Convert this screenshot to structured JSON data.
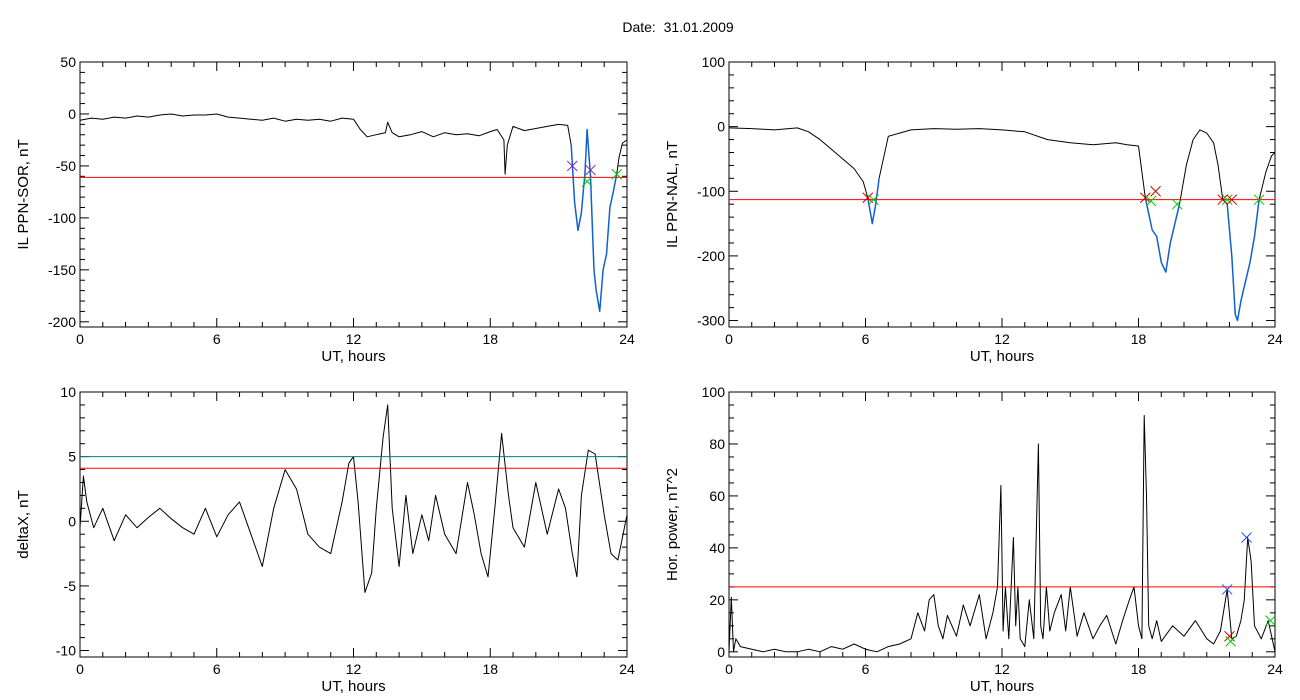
{
  "header": {
    "date_title": "Date:  31.01.2009"
  },
  "colors": {
    "trace": "#000000",
    "threshold": "#ff0000",
    "threshold2": "#008080",
    "highlight": "#1060d0",
    "marker_red": "#cc0000",
    "marker_green": "#00cc00",
    "marker_blue": "#2050ff",
    "marker_purple": "#8020a0"
  },
  "chart_data": [
    {
      "type": "line",
      "title": "",
      "xlabel": "UT, hours",
      "ylabel": "IL PPN-SOR, nT",
      "xlim": [
        0,
        24
      ],
      "ylim": [
        -205,
        50
      ],
      "xticks": [
        0,
        6,
        12,
        18,
        24
      ],
      "yticks": [
        50,
        0,
        -50,
        -100,
        -150,
        -200
      ],
      "grid": false,
      "thresholds": [
        {
          "y": -61,
          "color": "red"
        }
      ],
      "series": [
        {
          "color": "black",
          "x": [
            0,
            0.5,
            1,
            1.5,
            2,
            2.5,
            3,
            3.5,
            4,
            4.5,
            5,
            5.5,
            6,
            6.5,
            7,
            7.5,
            8,
            8.5,
            9,
            9.5,
            10,
            10.5,
            11,
            11.5,
            12,
            12.3,
            12.6,
            13,
            13.4,
            13.5,
            13.7,
            14,
            14.5,
            15,
            15.5,
            16,
            16.5,
            17,
            17.5,
            18,
            18.3,
            18.6,
            18.65,
            18.75,
            19,
            19.5,
            20,
            20.5,
            21,
            21.4,
            21.55
          ],
          "y": [
            -6,
            -4,
            -5,
            -3,
            -4,
            -2,
            -3,
            -1,
            0,
            -2,
            -1,
            -1,
            0,
            -3,
            -4,
            -5,
            -6,
            -4,
            -7,
            -5,
            -6,
            -5,
            -7,
            -4,
            -5,
            -15,
            -22,
            -20,
            -18,
            -8,
            -18,
            -22,
            -20,
            -17,
            -22,
            -18,
            -20,
            -19,
            -21,
            -17,
            -15,
            -25,
            -58,
            -30,
            -12,
            -16,
            -14,
            -12,
            -10,
            -11,
            -30
          ]
        },
        {
          "color": "blue",
          "x": [
            21.55,
            21.7,
            21.85,
            22.0,
            22.1,
            22.15,
            22.25,
            22.4,
            22.5,
            22.55,
            22.65,
            22.8,
            22.95,
            23.1,
            23.25,
            23.4,
            23.55
          ],
          "y": [
            -30,
            -85,
            -112,
            -95,
            -70,
            -60,
            -15,
            -60,
            -120,
            -150,
            -170,
            -190,
            -150,
            -135,
            -90,
            -75,
            -58
          ]
        },
        {
          "color": "black",
          "x": [
            23.55,
            23.65,
            23.8,
            24
          ],
          "y": [
            -58,
            -42,
            -28,
            -25
          ]
        }
      ],
      "markers": [
        {
          "x": 21.6,
          "y": -50,
          "color": "purple"
        },
        {
          "x": 22.4,
          "y": -54,
          "color": "purple"
        },
        {
          "x": 22.25,
          "y": -65,
          "color": "green"
        },
        {
          "x": 23.55,
          "y": -58,
          "color": "green"
        }
      ]
    },
    {
      "type": "line",
      "title": "",
      "xlabel": "UT, hours",
      "ylabel": "IL PPN-NAL, nT",
      "xlim": [
        0,
        24
      ],
      "ylim": [
        -310,
        100
      ],
      "xticks": [
        0,
        6,
        12,
        18,
        24
      ],
      "yticks": [
        100,
        0,
        -100,
        -200,
        -300
      ],
      "grid": false,
      "thresholds": [
        {
          "y": -113,
          "color": "red"
        }
      ],
      "series": [
        {
          "color": "black",
          "x": [
            0,
            1,
            2,
            3,
            3.5,
            4,
            4.5,
            5,
            5.5,
            5.9,
            6.1
          ],
          "y": [
            -2,
            -3,
            -5,
            -2,
            -8,
            -20,
            -35,
            -50,
            -65,
            -85,
            -110
          ]
        },
        {
          "color": "blue",
          "x": [
            6.1,
            6.3,
            6.45,
            6.6
          ],
          "y": [
            -110,
            -150,
            -120,
            -80
          ]
        },
        {
          "color": "black",
          "x": [
            6.6,
            7,
            8,
            9,
            10,
            11,
            12,
            13,
            14,
            15,
            16,
            17,
            17.5,
            18,
            18.3
          ],
          "y": [
            -80,
            -15,
            -5,
            -3,
            -4,
            -3,
            -5,
            -8,
            -20,
            -25,
            -28,
            -25,
            -28,
            -30,
            -110
          ]
        },
        {
          "color": "blue",
          "x": [
            18.3,
            18.6,
            18.8,
            19,
            19.2,
            19.4,
            19.6,
            19.8
          ],
          "y": [
            -110,
            -160,
            -170,
            -210,
            -225,
            -180,
            -150,
            -120
          ]
        },
        {
          "color": "black",
          "x": [
            19.8,
            20.1,
            20.4,
            20.7,
            21,
            21.3,
            21.5,
            21.7
          ],
          "y": [
            -120,
            -60,
            -20,
            -5,
            -10,
            -25,
            -60,
            -112
          ]
        },
        {
          "color": "blue",
          "x": [
            21.7,
            21.9,
            22.1,
            22.25,
            22.35,
            22.5,
            22.7,
            22.9,
            23.1,
            23.3
          ],
          "y": [
            -112,
            -120,
            -200,
            -290,
            -300,
            -270,
            -240,
            -210,
            -170,
            -113
          ]
        },
        {
          "color": "black",
          "x": [
            23.3,
            23.6,
            23.85,
            24
          ],
          "y": [
            -113,
            -70,
            -45,
            -40
          ]
        }
      ],
      "markers": [
        {
          "x": 6.1,
          "y": -110,
          "color": "red"
        },
        {
          "x": 6.35,
          "y": -113,
          "color": "green"
        },
        {
          "x": 18.3,
          "y": -110,
          "color": "red"
        },
        {
          "x": 18.55,
          "y": -115,
          "color": "green"
        },
        {
          "x": 18.75,
          "y": -100,
          "color": "red"
        },
        {
          "x": 19.7,
          "y": -120,
          "color": "green"
        },
        {
          "x": 21.7,
          "y": -113,
          "color": "red"
        },
        {
          "x": 21.9,
          "y": -113,
          "color": "green"
        },
        {
          "x": 22.1,
          "y": -113,
          "color": "red"
        },
        {
          "x": 23.3,
          "y": -113,
          "color": "green"
        }
      ]
    },
    {
      "type": "line",
      "title": "",
      "xlabel": "UT, hours",
      "ylabel": "deltaX, nT",
      "xlim": [
        0,
        24
      ],
      "ylim": [
        -10.5,
        10
      ],
      "xticks": [
        0,
        6,
        12,
        18,
        24
      ],
      "yticks": [
        10,
        5,
        0,
        -5,
        -10
      ],
      "grid": false,
      "thresholds": [
        {
          "y": 5,
          "color": "teal"
        },
        {
          "y": 4.1,
          "color": "red"
        }
      ],
      "series": [
        {
          "color": "black",
          "x": [
            0,
            0.15,
            0.3,
            0.6,
            1,
            1.5,
            2,
            2.5,
            3,
            3.5,
            4,
            4.5,
            5,
            5.5,
            6,
            6.5,
            7,
            7.5,
            8,
            8.5,
            9,
            9.5,
            10,
            10.5,
            11,
            11.5,
            11.8,
            12,
            12.2,
            12.5,
            12.8,
            13,
            13.3,
            13.5,
            13.7,
            14,
            14.3,
            14.6,
            15,
            15.3,
            15.6,
            16,
            16.5,
            17,
            17.3,
            17.6,
            17.9,
            18.2,
            18.5,
            18.8,
            19,
            19.5,
            20,
            20.5,
            21,
            21.3,
            21.6,
            21.8,
            22,
            22.3,
            22.6,
            23,
            23.3,
            23.6,
            24
          ],
          "y": [
            -0.5,
            3.5,
            1.5,
            -0.5,
            1.0,
            -1.5,
            0.5,
            -0.5,
            0.3,
            1.0,
            0.2,
            -0.5,
            -1.0,
            1.0,
            -1.2,
            0.5,
            1.5,
            -1.0,
            -3.5,
            1.0,
            4.0,
            2.5,
            -1.0,
            -2.0,
            -2.5,
            1.5,
            4.5,
            5.0,
            1.5,
            -5.5,
            -4.0,
            1.0,
            6.5,
            9.0,
            1.0,
            -3.5,
            2.0,
            -2.5,
            0.5,
            -1.5,
            2.0,
            -1.0,
            -2.5,
            3.0,
            0.5,
            -2.5,
            -4.3,
            1.0,
            6.8,
            2.0,
            -0.5,
            -2.0,
            3.0,
            -1.0,
            2.5,
            1.0,
            -2.5,
            -4.3,
            2.0,
            5.5,
            5.2,
            0.5,
            -2.5,
            -3.0,
            0.5
          ]
        }
      ]
    },
    {
      "type": "line",
      "title": "",
      "xlabel": "UT, hours",
      "ylabel": "Hor. power, nT^2",
      "xlim": [
        0,
        24
      ],
      "ylim": [
        -2,
        100
      ],
      "xticks": [
        0,
        6,
        12,
        18,
        24
      ],
      "yticks": [
        100,
        80,
        60,
        40,
        20,
        0
      ],
      "grid": false,
      "thresholds": [
        {
          "y": 25,
          "color": "red"
        }
      ],
      "series": [
        {
          "color": "black",
          "x": [
            0,
            0.1,
            0.2,
            0.3,
            0.5,
            1,
            1.5,
            2,
            2.5,
            3,
            3.5,
            4,
            4.5,
            5,
            5.5,
            6,
            6.5,
            7,
            7.5,
            8,
            8.3,
            8.6,
            8.8,
            9,
            9.2,
            9.4,
            9.6,
            10,
            10.3,
            10.6,
            11,
            11.3,
            11.6,
            11.8,
            11.95,
            12.05,
            12.15,
            12.3,
            12.5,
            12.6,
            12.7,
            12.8,
            13,
            13.2,
            13.4,
            13.6,
            13.7,
            13.8,
            13.95,
            14.1,
            14.3,
            14.6,
            14.8,
            15,
            15.3,
            15.6,
            16,
            16.3,
            16.6,
            17,
            17.3,
            17.6,
            17.8,
            18,
            18.15,
            18.25,
            18.35,
            18.45,
            18.6,
            18.8,
            19,
            19.5,
            20,
            20.5,
            21,
            21.3,
            21.6,
            21.9,
            22.1,
            22.3,
            22.5,
            22.65,
            22.8,
            22.95,
            23.1,
            23.4,
            23.7,
            24
          ],
          "y": [
            0,
            21,
            0,
            5,
            2,
            1,
            0,
            1,
            0,
            0,
            1,
            0,
            2,
            1,
            3,
            1,
            0,
            2,
            3,
            5,
            15,
            8,
            20,
            22,
            10,
            5,
            14,
            6,
            18,
            10,
            22,
            5,
            15,
            25,
            64,
            8,
            25,
            5,
            44,
            10,
            25,
            5,
            2,
            20,
            5,
            80,
            10,
            5,
            25,
            8,
            15,
            22,
            8,
            25,
            6,
            15,
            5,
            10,
            14,
            3,
            12,
            20,
            25,
            10,
            5,
            91,
            60,
            10,
            5,
            12,
            4,
            10,
            6,
            12,
            5,
            3,
            8,
            24,
            5,
            6,
            12,
            20,
            44,
            35,
            10,
            5,
            12,
            0
          ]
        }
      ],
      "markers": [
        {
          "x": 21.9,
          "y": 24,
          "color": "blue"
        },
        {
          "x": 22.0,
          "y": 6,
          "color": "red"
        },
        {
          "x": 22.05,
          "y": 4,
          "color": "green"
        },
        {
          "x": 22.75,
          "y": 44,
          "color": "blue"
        },
        {
          "x": 23.8,
          "y": 12,
          "color": "green"
        }
      ]
    }
  ]
}
